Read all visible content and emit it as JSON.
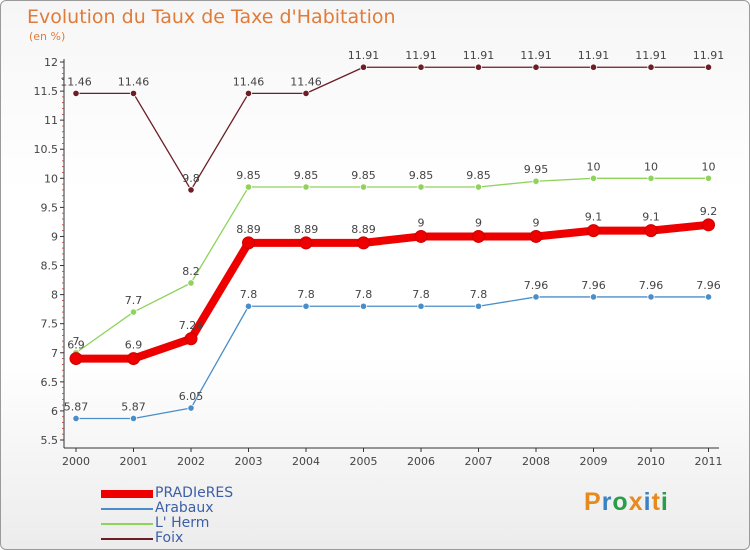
{
  "title": "Evolution du Taux de Taxe d'Habitation",
  "subtitle": "(en %)",
  "logo": {
    "text": "Proxiti",
    "letters": [
      "P",
      "r",
      "o",
      "x",
      "i",
      "t",
      "i"
    ]
  },
  "chart_data": {
    "type": "line",
    "title": "Evolution du Taux de Taxe d'Habitation",
    "ylabel": "(en %)",
    "xlabel": "",
    "ylim": [
      5.5,
      12
    ],
    "yticks": [
      "5.5",
      "6",
      "6.5",
      "7",
      "7.5",
      "8",
      "8.5",
      "9",
      "9.5",
      "10",
      "10.5",
      "11",
      "11.5",
      "12"
    ],
    "categories": [
      "2000",
      "2001",
      "2002",
      "2003",
      "2004",
      "2005",
      "2006",
      "2007",
      "2008",
      "2009",
      "2010",
      "2011"
    ],
    "series": [
      {
        "name": "Foix",
        "color": "#6b1e25",
        "values": [
          11.46,
          11.46,
          9.8,
          11.46,
          11.46,
          11.91,
          11.91,
          11.91,
          11.91,
          11.91,
          11.91,
          11.91
        ],
        "labels": [
          "11.46",
          "11.46",
          "9.8",
          "11.46",
          "11.46",
          "11.91",
          "11.91",
          "11.91",
          "11.91",
          "11.91",
          "11.91",
          "11.91"
        ]
      },
      {
        "name": "L' Herm",
        "color": "#8fd35a",
        "values": [
          7,
          7.7,
          8.2,
          9.85,
          9.85,
          9.85,
          9.85,
          9.85,
          9.95,
          10,
          10,
          10
        ],
        "labels": [
          "7",
          "7.7",
          "8.2",
          "9.85",
          "9.85",
          "9.85",
          "9.85",
          "9.85",
          "9.95",
          "10",
          "10",
          "10"
        ]
      },
      {
        "name": "Arabaux",
        "color": "#4a8ec9",
        "values": [
          5.87,
          5.87,
          6.05,
          7.8,
          7.8,
          7.8,
          7.8,
          7.8,
          7.96,
          7.96,
          7.96,
          7.96
        ],
        "labels": [
          "5.87",
          "5.87",
          "6.05",
          "7.8",
          "7.8",
          "7.8",
          "7.8",
          "7.8",
          "7.96",
          "7.96",
          "7.96",
          "7.96"
        ]
      },
      {
        "name": "PRADIeRES",
        "color": "#ee0000",
        "values": [
          6.9,
          6.9,
          7.24,
          8.89,
          8.89,
          8.89,
          9,
          9,
          9,
          9.1,
          9.1,
          9.2
        ],
        "labels": [
          "6.9",
          "6.9",
          "7.24",
          "8.89",
          "8.89",
          "8.89",
          "9",
          "9",
          "9",
          "9.1",
          "9.1",
          "9.2"
        ]
      }
    ]
  },
  "legend": [
    {
      "label": "PRADIeRES",
      "color": "#ee0000"
    },
    {
      "label": "Arabaux",
      "color": "#4a8ec9"
    },
    {
      "label": "L' Herm",
      "color": "#8fd35a"
    },
    {
      "label": "Foix",
      "color": "#6b1e25"
    }
  ],
  "colors": {
    "title": "#e07b39",
    "axis": "#333333",
    "tick_minor": "#c0392b"
  }
}
